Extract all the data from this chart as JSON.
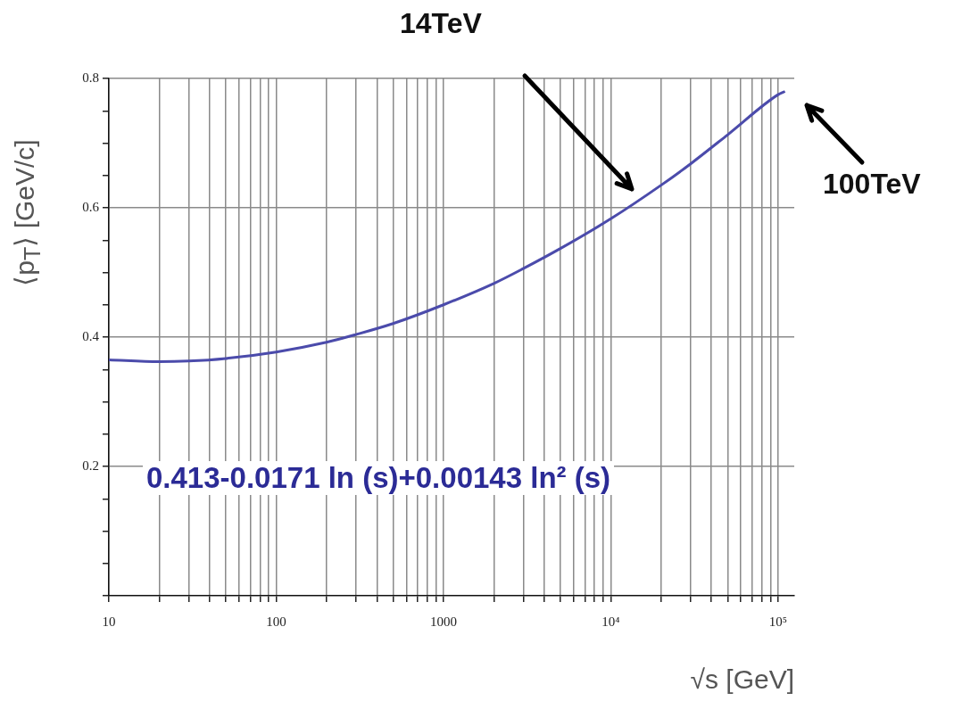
{
  "chart_data": {
    "type": "line",
    "xlabel": "√s [GeV]",
    "ylabel": "⟨p$_{T}$⟩ [GeV/c]",
    "log": "x",
    "x": [
      10,
      20,
      30,
      50,
      100,
      200,
      300,
      500,
      1000,
      2000,
      3000,
      5000,
      10000,
      20000,
      30000,
      50000,
      100000,
      110000
    ],
    "series": [
      {
        "color": "#4b4bab",
        "values": [
          0.365,
          0.362,
          0.363,
          0.367,
          0.377,
          0.392,
          0.404,
          0.421,
          0.45,
          0.483,
          0.506,
          0.537,
          0.583,
          0.635,
          0.668,
          0.713,
          0.775,
          0.78
        ]
      }
    ],
    "xlim": [
      10,
      125000
    ],
    "xticks": [
      10,
      {
        "value": 20,
        "label": null
      },
      {
        "value": 30,
        "label": null
      },
      {
        "value": 40,
        "label": null
      },
      {
        "value": 50,
        "label": null
      },
      {
        "value": 60,
        "label": null
      },
      {
        "value": 70,
        "label": null
      },
      {
        "value": 80,
        "label": null
      },
      {
        "value": 90,
        "label": null
      },
      100,
      {
        "value": 200,
        "label": null
      },
      {
        "value": 300,
        "label": null
      },
      {
        "value": 400,
        "label": null
      },
      {
        "value": 500,
        "label": null
      },
      {
        "value": 600,
        "label": null
      },
      {
        "value": 700,
        "label": null
      },
      {
        "value": 800,
        "label": null
      },
      {
        "value": 900,
        "label": null
      },
      1000,
      {
        "value": 2000,
        "label": null
      },
      {
        "value": 3000,
        "label": null
      },
      {
        "value": 4000,
        "label": null
      },
      {
        "value": 5000,
        "label": null
      },
      {
        "value": 6000,
        "label": null
      },
      {
        "value": 7000,
        "label": null
      },
      {
        "value": 8000,
        "label": null
      },
      {
        "value": 9000,
        "label": null
      },
      {
        "value": 10000,
        "label": "10⁴"
      },
      {
        "value": 20000,
        "label": null
      },
      {
        "value": 30000,
        "label": null
      },
      {
        "value": 40000,
        "label": null
      },
      {
        "value": 50000,
        "label": null
      },
      {
        "value": 60000,
        "label": null
      },
      {
        "value": 70000,
        "label": null
      },
      {
        "value": 80000,
        "label": null
      },
      {
        "value": 90000,
        "label": null
      },
      {
        "value": 100000,
        "label": "10⁵"
      }
    ],
    "ylim": [
      0,
      0.8
    ],
    "yticks": [
      {
        "value": 0,
        "label": null
      },
      {
        "value": 0.05,
        "label": null
      },
      {
        "value": 0.1,
        "label": null
      },
      {
        "value": 0.15,
        "label": null
      },
      0.2,
      {
        "value": 0.25,
        "label": null
      },
      {
        "value": 0.3,
        "label": null
      },
      {
        "value": 0.35,
        "label": null
      },
      0.4,
      {
        "value": 0.45,
        "label": null
      },
      {
        "value": 0.5,
        "label": null
      },
      {
        "value": 0.55,
        "label": null
      },
      0.6,
      {
        "value": 0.65,
        "label": null
      },
      {
        "value": 0.7,
        "label": null
      },
      {
        "value": 0.75,
        "label": null
      },
      0.8
    ],
    "grid": true,
    "legend": false,
    "annotations": [
      "14TeV",
      "100TeV",
      "0.413-0.0171 ln (s)+0.00143 ln² (s)"
    ]
  }
}
